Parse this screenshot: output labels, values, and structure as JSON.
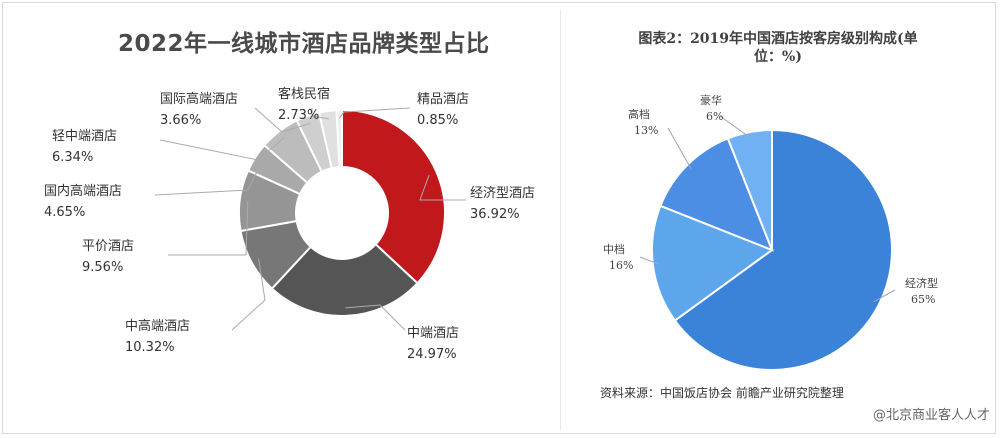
{
  "left_chart": {
    "title": "2022年一线城市酒店品牌类型占比"
  },
  "right_chart": {
    "title_line1": "图表2：2019年中国酒店按客房级别构成(单",
    "title_line2": "位：%)"
  },
  "source": "资料来源：中国饭店协会 前瞻产业研究院整理",
  "credit": "@北京商业客人人才",
  "colors": {
    "donut": [
      "#c0181b",
      "#555555",
      "#777777",
      "#959595",
      "#a9a9a9",
      "#bcbcbc",
      "#cfcfcf",
      "#e0e0e0"
    ],
    "pie": [
      "#3a83d8",
      "#5ea6ec",
      "#4c8ee3",
      "#6fb1f2"
    ]
  },
  "chart_data": [
    {
      "type": "pie",
      "subtype": "donut",
      "title": "2022年一线城市酒店品牌类型占比",
      "slices": [
        {
          "name": "经济型酒店",
          "value": 36.92,
          "label": "36.92%"
        },
        {
          "name": "中端酒店",
          "value": 24.97,
          "label": "24.97%"
        },
        {
          "name": "中高端酒店",
          "value": 10.32,
          "label": "10.32%"
        },
        {
          "name": "平价酒店",
          "value": 9.56,
          "label": "9.56%"
        },
        {
          "name": "国内高端酒店",
          "value": 4.65,
          "label": "4.65%"
        },
        {
          "name": "轻中端酒店",
          "value": 6.34,
          "label": "6.34%"
        },
        {
          "name": "国际高端酒店",
          "value": 3.66,
          "label": "3.66%"
        },
        {
          "name": "客栈民宿",
          "value": 2.73,
          "label": "2.73%"
        },
        {
          "name": "精品酒店",
          "value": 0.85,
          "label": "0.85%"
        }
      ]
    },
    {
      "type": "pie",
      "title": "图表2：2019年中国酒店按客房级别构成(单位：%)",
      "slices": [
        {
          "name": "经济型",
          "value": 65,
          "label": "65%"
        },
        {
          "name": "中档",
          "value": 16,
          "label": "16%"
        },
        {
          "name": "高档",
          "value": 13,
          "label": "13%"
        },
        {
          "name": "豪华",
          "value": 6,
          "label": "6%"
        }
      ]
    }
  ]
}
